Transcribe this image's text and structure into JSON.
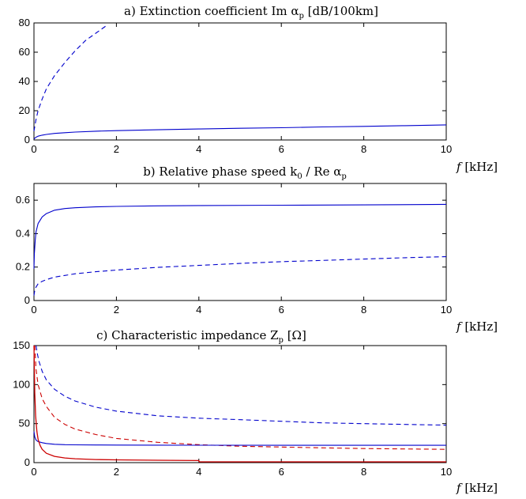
{
  "chart_data": [
    {
      "type": "line",
      "title": "a) Extinction coefficient Im α",
      "title_sub": "p",
      "title_tail": " [dB/100km]",
      "xlabel": "f",
      "xunit": " [kHz]",
      "xlim": [
        0,
        10
      ],
      "ylim": [
        0,
        80
      ],
      "xticks": [
        "0",
        "2",
        "4",
        "6",
        "8",
        "10"
      ],
      "yticks": [
        "0",
        "20",
        "40",
        "60",
        "80"
      ],
      "grid": false,
      "series": [
        {
          "color": "#0000cc",
          "style": "solid",
          "x": [
            0,
            0.02,
            0.05,
            0.1,
            0.2,
            0.3,
            0.5,
            0.75,
            1,
            1.5,
            2,
            3,
            4,
            5,
            6,
            7,
            8,
            9,
            10
          ],
          "y": [
            0.5,
            1.2,
            1.9,
            2.6,
            3.3,
            3.8,
            4.5,
            5.0,
            5.4,
            6.0,
            6.4,
            7.0,
            7.5,
            8.0,
            8.4,
            8.9,
            9.3,
            9.8,
            10.3
          ]
        },
        {
          "color": "#0000cc",
          "style": "dashed",
          "x": [
            0,
            0.05,
            0.1,
            0.2,
            0.3,
            0.5,
            0.75,
            1,
            1.25,
            1.5,
            1.75
          ],
          "y": [
            6,
            14,
            20,
            28,
            35,
            44,
            53,
            61,
            68,
            73,
            78
          ]
        }
      ]
    },
    {
      "type": "line",
      "title": "b) Relative phase speed k",
      "title_sub": "0",
      "title_tail": " / Re α",
      "title_sub2": "p",
      "xlabel": "f",
      "xunit": " [kHz]",
      "xlim": [
        0,
        10
      ],
      "ylim": [
        0,
        0.7
      ],
      "xticks": [
        "0",
        "2",
        "4",
        "6",
        "8",
        "10"
      ],
      "yticks": [
        "0",
        "0.2",
        "0.4",
        "0.6"
      ],
      "grid": false,
      "series": [
        {
          "color": "#0000cc",
          "style": "solid",
          "x": [
            0,
            0.01,
            0.03,
            0.05,
            0.1,
            0.2,
            0.3,
            0.5,
            0.75,
            1,
            1.5,
            2,
            3,
            4,
            6,
            8,
            10
          ],
          "y": [
            0.19,
            0.28,
            0.36,
            0.41,
            0.46,
            0.5,
            0.52,
            0.54,
            0.55,
            0.555,
            0.56,
            0.563,
            0.566,
            0.568,
            0.57,
            0.572,
            0.575
          ]
        },
        {
          "color": "#0000cc",
          "style": "dashed",
          "x": [
            0,
            0.02,
            0.05,
            0.1,
            0.2,
            0.3,
            0.5,
            0.75,
            1,
            1.5,
            2,
            3,
            4,
            5,
            6,
            7,
            8,
            9,
            10
          ],
          "y": [
            0.03,
            0.06,
            0.08,
            0.1,
            0.115,
            0.125,
            0.14,
            0.15,
            0.16,
            0.172,
            0.182,
            0.198,
            0.21,
            0.222,
            0.232,
            0.24,
            0.248,
            0.256,
            0.262
          ]
        }
      ]
    },
    {
      "type": "line",
      "title": "c) Characteristic impedance Z",
      "title_sub": "p",
      "title_tail": " [Ω]",
      "xlabel": "f",
      "xunit": " [kHz]",
      "xlim": [
        0,
        10
      ],
      "ylim": [
        0,
        150
      ],
      "xticks": [
        "0",
        "2",
        "4",
        "6",
        "8",
        "10"
      ],
      "yticks": [
        "0",
        "50",
        "100",
        "150"
      ],
      "grid": false,
      "series": [
        {
          "color": "#0000cc",
          "style": "dashed",
          "x": [
            0.05,
            0.08,
            0.12,
            0.2,
            0.3,
            0.5,
            0.75,
            1,
            1.5,
            2,
            3,
            4,
            5,
            6,
            7,
            8,
            9,
            10
          ],
          "y": [
            150,
            140,
            130,
            117,
            106,
            94,
            85,
            79,
            71,
            66,
            60,
            57,
            55,
            53,
            51,
            50,
            49,
            48
          ]
        },
        {
          "color": "#cc0000",
          "style": "dashed",
          "x": [
            0.02,
            0.05,
            0.1,
            0.2,
            0.3,
            0.5,
            0.75,
            1,
            1.5,
            2,
            3,
            4,
            5,
            6,
            7,
            8,
            9,
            10
          ],
          "y": [
            150,
            120,
            100,
            82,
            72,
            58,
            49,
            43,
            36,
            31,
            26,
            23,
            21,
            20,
            19,
            18,
            17.5,
            17
          ]
        },
        {
          "color": "#0000cc",
          "style": "solid",
          "x": [
            0,
            0.02,
            0.05,
            0.1,
            0.2,
            0.3,
            0.5,
            0.75,
            1,
            1.5,
            2,
            3,
            4,
            6,
            8,
            10
          ],
          "y": [
            40,
            33,
            29,
            27,
            25.5,
            24.5,
            23.5,
            23,
            22.8,
            22.6,
            22.5,
            22.4,
            22.3,
            22.2,
            22.2,
            22.2
          ]
        },
        {
          "color": "#cc0000",
          "style": "solid",
          "x": [
            0,
            0.01,
            0.02,
            0.04,
            0.07,
            0.1,
            0.15,
            0.2,
            0.3,
            0.5,
            0.75,
            1,
            1.5,
            2,
            3,
            4,
            4.01,
            6,
            8,
            10
          ],
          "y": [
            150,
            120,
            90,
            60,
            40,
            30,
            22,
            17,
            12,
            8,
            6,
            5,
            4,
            3.5,
            3,
            2.6,
            1,
            1,
            1,
            1
          ]
        }
      ]
    }
  ]
}
